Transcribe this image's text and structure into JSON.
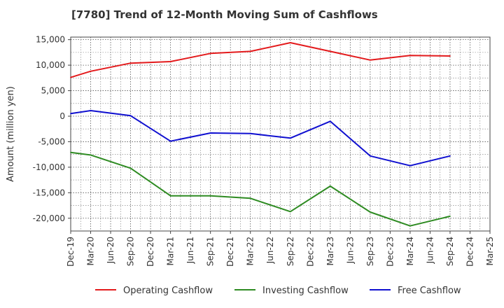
{
  "chart_data": {
    "type": "line",
    "title": "[7780]  Trend of 12-Month Moving Sum of Cashflows",
    "xlabel": "",
    "ylabel": "Amount (million yen)",
    "ylim": [
      -22500,
      15500
    ],
    "yticks": [
      15000,
      10000,
      5000,
      0,
      -5000,
      -10000,
      -15000,
      -20000
    ],
    "ytick_labels": [
      "15,000",
      "10,000",
      "5,000",
      "0",
      "-5,000",
      "-10,000",
      "-15,000",
      "-20,000"
    ],
    "categories": [
      "Dec-19",
      "Mar-20",
      "Jun-20",
      "Sep-20",
      "Dec-20",
      "Mar-21",
      "Jun-21",
      "Sep-21",
      "Dec-21",
      "Mar-22",
      "Jun-22",
      "Sep-22",
      "Dec-22",
      "Mar-23",
      "Jun-23",
      "Sep-23",
      "Dec-23",
      "Mar-24",
      "Jun-24",
      "Sep-24",
      "Dec-24",
      "Mar-25"
    ],
    "grid": true,
    "legend_position": "bottom",
    "series": [
      {
        "name": "Operating Cashflow",
        "color": "#e31a1c",
        "x": [
          "Dec-19",
          "Mar-20",
          "Sep-20",
          "Mar-21",
          "Sep-21",
          "Mar-22",
          "Sep-22",
          "Mar-23",
          "Sep-23",
          "Mar-24",
          "Sep-24"
        ],
        "values": [
          7600,
          8800,
          10400,
          10700,
          12300,
          12700,
          14400,
          12700,
          11000,
          11900,
          11800
        ]
      },
      {
        "name": "Investing Cashflow",
        "color": "#2e8b22",
        "x": [
          "Dec-19",
          "Mar-20",
          "Sep-20",
          "Mar-21",
          "Sep-21",
          "Mar-22",
          "Sep-22",
          "Mar-23",
          "Sep-23",
          "Mar-24",
          "Sep-24"
        ],
        "values": [
          -7100,
          -7600,
          -10200,
          -15600,
          -15600,
          -16100,
          -18700,
          -13700,
          -18800,
          -21500,
          -19600
        ]
      },
      {
        "name": "Free Cashflow",
        "color": "#1010d0",
        "x": [
          "Dec-19",
          "Mar-20",
          "Sep-20",
          "Mar-21",
          "Sep-21",
          "Mar-22",
          "Sep-22",
          "Mar-23",
          "Sep-23",
          "Mar-24",
          "Sep-24"
        ],
        "values": [
          500,
          1100,
          100,
          -4900,
          -3300,
          -3400,
          -4300,
          -1000,
          -7800,
          -9700,
          -7800
        ]
      }
    ]
  }
}
